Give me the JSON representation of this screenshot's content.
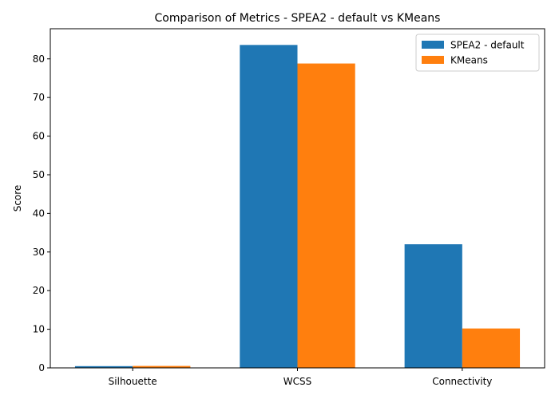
{
  "chart_data": {
    "type": "bar",
    "title": "Comparison of Metrics - SPEA2 - default vs KMeans",
    "xlabel": "",
    "ylabel": "Score",
    "categories": [
      "Silhouette",
      "WCSS",
      "Connectivity"
    ],
    "series": [
      {
        "name": "SPEA2 - default",
        "color": "#1f77b4",
        "values": [
          0.45,
          83.6,
          32.0
        ]
      },
      {
        "name": "KMeans",
        "color": "#ff7f0e",
        "values": [
          0.5,
          78.8,
          10.2
        ]
      }
    ],
    "ylim": [
      0,
      87.8
    ],
    "yticks": [
      0,
      10,
      20,
      30,
      40,
      50,
      60,
      70,
      80
    ],
    "grid": false,
    "legend_position": "top-right"
  }
}
